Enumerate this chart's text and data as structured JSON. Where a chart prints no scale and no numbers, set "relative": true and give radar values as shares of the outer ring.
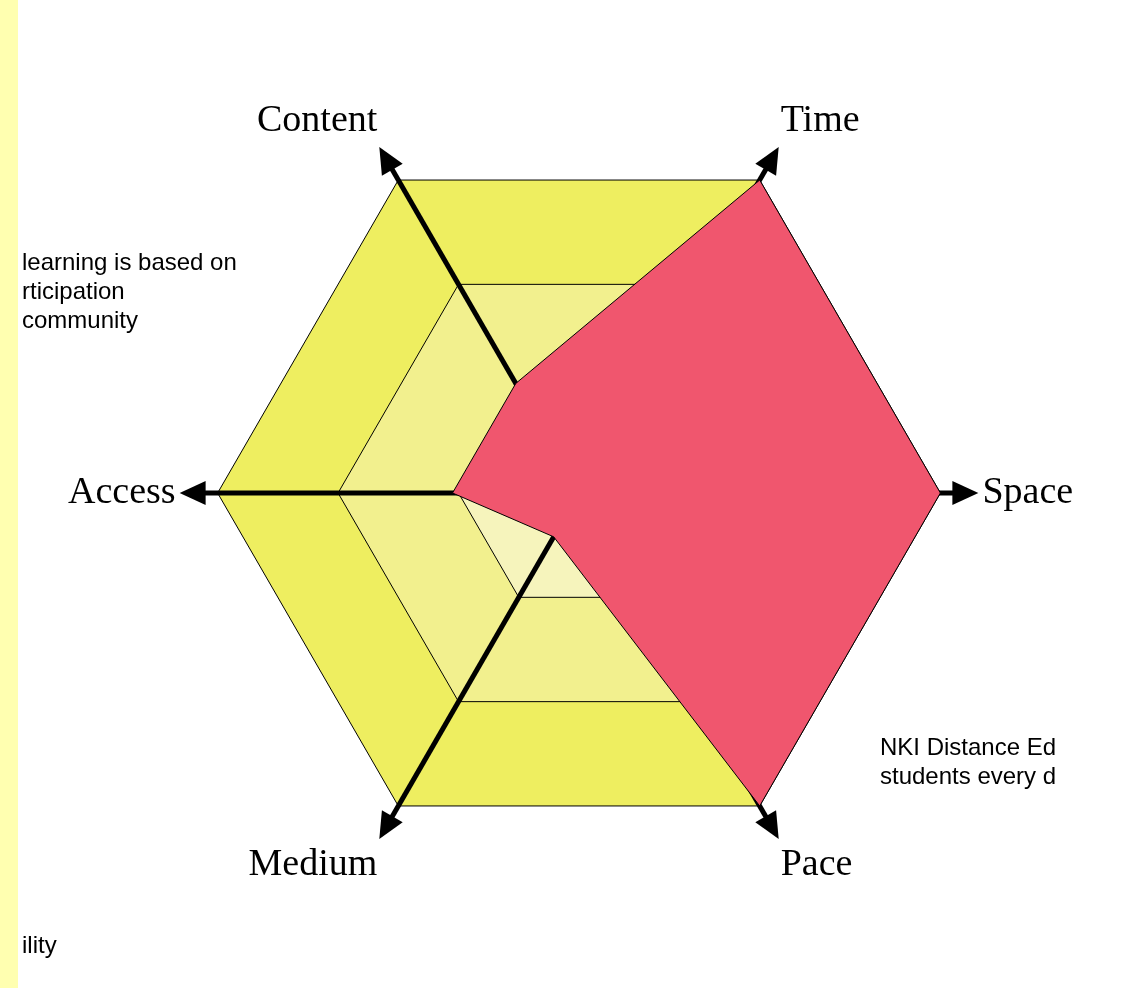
{
  "chart_data": {
    "type": "radar",
    "relative": true,
    "categories": [
      "Content",
      "Time",
      "Space",
      "Pace",
      "Medium",
      "Access"
    ],
    "series": [
      {
        "color": "#f0566e",
        "values": [
          0.35,
          1,
          1,
          1,
          0.14,
          0.35
        ]
      }
    ],
    "grid": true,
    "legend": false,
    "marker": "none",
    "annotations": [
      "learning is based on\nrticipation\ncommunity",
      "NKI Distance Ed\nstudents every d",
      "ility"
    ]
  }
}
